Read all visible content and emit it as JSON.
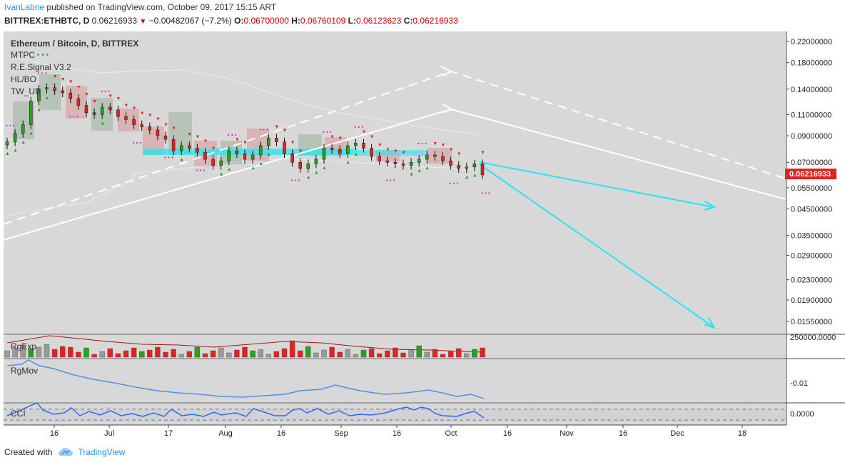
{
  "header": {
    "author": "IvanLabrie",
    "published_text": "published on TradingView.com, October 09, 2017 15:15 ART",
    "symbol": "BITTREX:ETHBTC, D",
    "last": "0.06216933",
    "change_arrow": "▼",
    "change": "−0.00482067 (−7.2%)",
    "o_label": "O:",
    "o": "0.06700000",
    "h_label": "H:",
    "h": "0.06760109",
    "l_label": "L:",
    "l": "0.06123623",
    "c_label": "C:",
    "c": "0.06216933"
  },
  "legend": {
    "title": "Ethereum / Bitcoin, D, BITTREX",
    "items": [
      "MTPC",
      "R.E.Signal V3.2",
      "HL/BO",
      "TW_UB"
    ]
  },
  "colors": {
    "background": "#d8d8d8",
    "bull": "#23a41a",
    "bear": "#e0231e",
    "cyan": "#26e6f0",
    "white": "#ffffff",
    "pink": "#e020c8",
    "price_tag": "#e0231e",
    "tradingview": "#2196f3"
  },
  "chart_data": {
    "type": "candlestick",
    "title": "Ethereum / Bitcoin, D, BITTREX",
    "y_scale": "log",
    "y_ticks": [
      "0.22000000",
      "0.18000000",
      "0.14000000",
      "0.11000000",
      "0.09000000",
      "0.07000000",
      "0.05500000",
      "0.04500000",
      "0.03500000",
      "0.02900000",
      "0.02300000",
      "0.01900000",
      "0.01550000"
    ],
    "y_tick_values": [
      0.22,
      0.18,
      0.14,
      0.11,
      0.09,
      0.07,
      0.055,
      0.045,
      0.035,
      0.029,
      0.023,
      0.019,
      0.0155
    ],
    "x_ticks": [
      "16",
      "Jul",
      "17",
      "Aug",
      "16",
      "Sep",
      "16",
      "Oct",
      "16",
      "Nov",
      "16",
      "Dec",
      "18"
    ],
    "last_price": "0.06216933",
    "close_series": [
      0.085,
      0.092,
      0.1,
      0.125,
      0.14,
      0.142,
      0.138,
      0.135,
      0.128,
      0.12,
      0.112,
      0.11,
      0.118,
      0.115,
      0.108,
      0.105,
      0.1,
      0.098,
      0.095,
      0.09,
      0.087,
      0.078,
      0.082,
      0.08,
      0.077,
      0.072,
      0.068,
      0.071,
      0.078,
      0.076,
      0.072,
      0.075,
      0.082,
      0.088,
      0.085,
      0.076,
      0.07,
      0.066,
      0.069,
      0.072,
      0.08,
      0.079,
      0.076,
      0.082,
      0.084,
      0.08,
      0.074,
      0.071,
      0.07,
      0.069,
      0.068,
      0.07,
      0.072,
      0.075,
      0.074,
      0.071,
      0.068,
      0.066,
      0.067,
      0.069,
      0.0621
    ],
    "projection_cyan_1": {
      "from": [
        "Oct 05",
        0.07
      ],
      "to": [
        "Dec 05",
        0.045
      ]
    },
    "projection_cyan_2": {
      "from": [
        "Oct 05",
        0.066
      ],
      "to": [
        "Dec 05",
        0.0155
      ]
    },
    "white_solid": {
      "points": [
        [
          "May 28",
          0.0328
        ],
        [
          "Oct 01",
          0.114
        ],
        [
          "Dec 31",
          0.047
        ]
      ]
    },
    "white_dashed": {
      "points": [
        [
          "May 28",
          0.038
        ],
        [
          "Oct 01",
          0.162
        ],
        [
          "Dec 31",
          0.058
        ]
      ]
    },
    "volume_panel": {
      "label": "RgExp",
      "tick": "250000.0000"
    },
    "mov_panel": {
      "label": "RgMov",
      "tick": "-0.01"
    },
    "cci_panel": {
      "label": "CCI",
      "tick": "0.0000"
    }
  },
  "footer": {
    "created_with": "Created with",
    "brand": "TradingView"
  }
}
